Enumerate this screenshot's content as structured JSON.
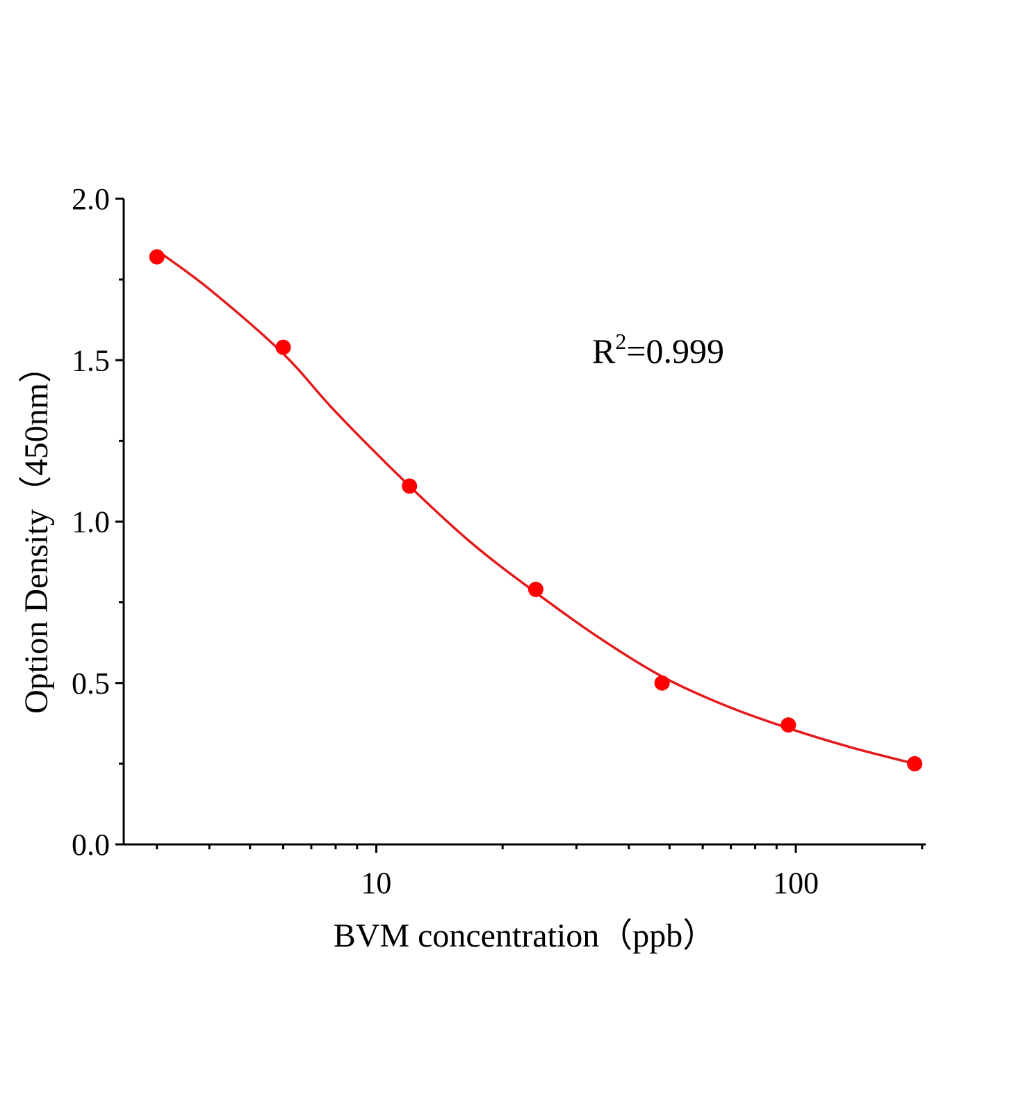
{
  "chart_data": {
    "type": "scatter",
    "x_label": "BVM concentration（ppb）",
    "y_label": "Option Density（450nm）",
    "annotation": {
      "base": "R",
      "superscript": "2",
      "text": "=0.999"
    },
    "x": [
      3,
      6,
      12,
      24,
      48,
      96,
      192
    ],
    "values": [
      1.82,
      1.54,
      1.11,
      0.79,
      0.5,
      0.37,
      0.25
    ],
    "color": "#ff0000",
    "fit_curve": {
      "x": [
        3,
        4,
        6,
        8,
        12,
        17,
        24,
        34,
        48,
        68,
        96,
        136,
        192
      ],
      "values": [
        1.84,
        1.72,
        1.52,
        1.34,
        1.11,
        0.93,
        0.78,
        0.64,
        0.52,
        0.43,
        0.36,
        0.3,
        0.25
      ],
      "color": "#e31a1c"
    },
    "log_x": true,
    "xlim": [
      2.5,
      204
    ],
    "xticks": [
      10,
      100
    ],
    "xminorticks": [
      3,
      4,
      5,
      6,
      7,
      8,
      9,
      20,
      30,
      40,
      50,
      60,
      70,
      80,
      90,
      200
    ],
    "ylim": [
      0,
      2
    ],
    "yticks": [
      {
        "value": 0,
        "label": "0.0"
      },
      0.5,
      {
        "value": 1,
        "label": "1.0"
      },
      1.5,
      {
        "value": 2,
        "label": "2.0"
      }
    ],
    "yminorticks": [
      0.25,
      0.75,
      1.25,
      1.75
    ]
  }
}
